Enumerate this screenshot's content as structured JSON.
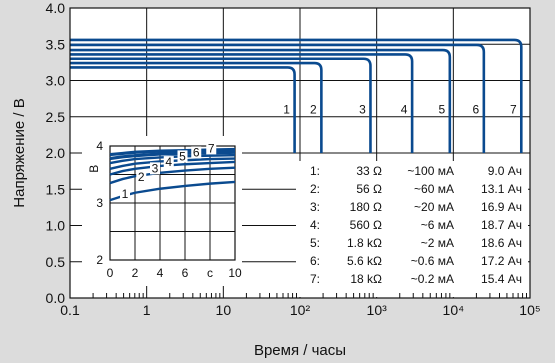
{
  "chart_data": [
    {
      "type": "line",
      "xlabel": "Время / часы",
      "ylabel": "Напряжение / В",
      "xscale": "log",
      "xlim": [
        0.1,
        100000
      ],
      "ylim": [
        0.0,
        4.0
      ],
      "grid": true,
      "x_ticks": [
        {
          "value": 0.1,
          "label": "0.1"
        },
        {
          "value": 1,
          "label": "1"
        },
        {
          "value": 10,
          "label": "10"
        },
        {
          "value": 100,
          "label": "10²"
        },
        {
          "value": 1000,
          "label": "10³"
        },
        {
          "value": 10000,
          "label": "10⁴"
        },
        {
          "value": 100000,
          "label": "10⁵"
        }
      ],
      "y_ticks": [
        {
          "value": 0.0,
          "label": "0.0"
        },
        {
          "value": 0.5,
          "label": "0.5"
        },
        {
          "value": 1.0,
          "label": "1.0"
        },
        {
          "value": 1.5,
          "label": "1.5"
        },
        {
          "value": 2.0,
          "label": "2.0"
        },
        {
          "value": 2.5,
          "label": "2.5"
        },
        {
          "value": 3.0,
          "label": "3.0"
        },
        {
          "value": 3.5,
          "label": "3.5"
        },
        {
          "value": 4.0,
          "label": "4.0"
        }
      ],
      "series_color": "#0a4a8f",
      "series": [
        {
          "label": "1",
          "plateau": 3.18,
          "end_x": 85
        },
        {
          "label": "2",
          "plateau": 3.24,
          "end_x": 190
        },
        {
          "label": "3",
          "plateau": 3.3,
          "end_x": 830
        },
        {
          "label": "4",
          "plateau": 3.36,
          "end_x": 2900
        },
        {
          "label": "5",
          "plateau": 3.42,
          "end_x": 9000
        },
        {
          "label": "6",
          "plateau": 3.49,
          "end_x": 25000
        },
        {
          "label": "7",
          "plateau": 3.56,
          "end_x": 77000
        }
      ],
      "legend": [
        {
          "num": "1:",
          "resistance": "33 Ω",
          "current": "~100 мА",
          "capacity": "9.0 Ач"
        },
        {
          "num": "2:",
          "resistance": "56 Ω",
          "current": "~60 мА",
          "capacity": "13.1 Ач"
        },
        {
          "num": "3:",
          "resistance": "180 Ω",
          "current": "~20 мА",
          "capacity": "16.9 Ач"
        },
        {
          "num": "4:",
          "resistance": "560 Ω",
          "current": "~6 мА",
          "capacity": "18.7 Ач"
        },
        {
          "num": "5:",
          "resistance": "1.8 kΩ",
          "current": "~2 мА",
          "capacity": "18.6 Ач"
        },
        {
          "num": "6:",
          "resistance": "5.6 kΩ",
          "current": "~0.6 мА",
          "capacity": "17.2 Ач"
        },
        {
          "num": "7:",
          "resistance": "18 kΩ",
          "current": "~0.2 мА",
          "capacity": "15.4 Ач"
        }
      ]
    },
    {
      "type": "line",
      "xlabel": "с",
      "ylabel": "В",
      "xlim": [
        0,
        10
      ],
      "ylim": [
        2,
        4
      ],
      "grid": true,
      "x_ticks": [
        "0",
        "2",
        "4",
        "6",
        "с",
        "10"
      ],
      "y_ticks": [
        "2",
        "3",
        "4"
      ],
      "series": [
        {
          "label": "1",
          "x": [
            0,
            1,
            2,
            4,
            6,
            8,
            10
          ],
          "y": [
            3.05,
            3.12,
            3.18,
            3.25,
            3.3,
            3.34,
            3.37
          ]
        },
        {
          "label": "2",
          "x": [
            0,
            1,
            2,
            4,
            6,
            8,
            10
          ],
          "y": [
            3.35,
            3.42,
            3.47,
            3.53,
            3.57,
            3.6,
            3.62
          ]
        },
        {
          "label": "3",
          "x": [
            0,
            1,
            2,
            4,
            6,
            8,
            10
          ],
          "y": [
            3.5,
            3.56,
            3.6,
            3.65,
            3.68,
            3.7,
            3.72
          ]
        },
        {
          "label": "4",
          "x": [
            0,
            1,
            2,
            4,
            6,
            8,
            10
          ],
          "y": [
            3.6,
            3.65,
            3.69,
            3.73,
            3.75,
            3.77,
            3.78
          ]
        },
        {
          "label": "5",
          "x": [
            0,
            1,
            2,
            4,
            6,
            8,
            10
          ],
          "y": [
            3.7,
            3.74,
            3.77,
            3.8,
            3.82,
            3.83,
            3.84
          ]
        },
        {
          "label": "6",
          "x": [
            0,
            1,
            2,
            4,
            6,
            8,
            10
          ],
          "y": [
            3.78,
            3.81,
            3.83,
            3.86,
            3.87,
            3.88,
            3.89
          ]
        },
        {
          "label": "7",
          "x": [
            0,
            1,
            2,
            4,
            6,
            8,
            10
          ],
          "y": [
            3.85,
            3.87,
            3.89,
            3.91,
            3.92,
            3.93,
            3.94
          ]
        }
      ]
    }
  ]
}
